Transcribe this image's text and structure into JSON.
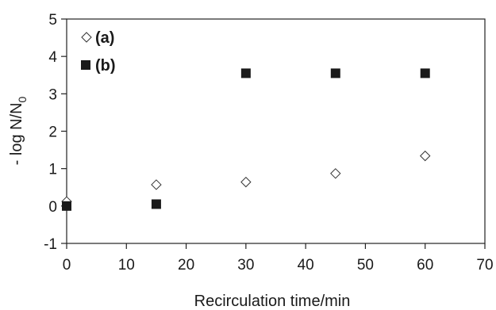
{
  "chart_data": {
    "type": "scatter",
    "xlabel": "Recirculation time/min",
    "ylabel_main": "- log N/N",
    "ylabel_sub": "0",
    "xlim": [
      0,
      70
    ],
    "ylim": [
      -1,
      5
    ],
    "x_ticks": [
      0,
      10,
      20,
      30,
      40,
      50,
      60,
      70
    ],
    "y_ticks": [
      -1,
      0,
      1,
      2,
      3,
      4,
      5
    ],
    "grid": false,
    "legend_position": "top-left",
    "series": [
      {
        "name": "(a)",
        "marker": "open-diamond",
        "x": [
          0,
          15,
          30,
          45,
          60
        ],
        "y": [
          0.12,
          0.57,
          0.64,
          0.87,
          1.34
        ]
      },
      {
        "name": "(b)",
        "marker": "filled-square",
        "x": [
          0,
          15,
          30,
          45,
          60
        ],
        "y": [
          0.0,
          0.05,
          3.55,
          3.55,
          3.55
        ]
      }
    ]
  }
}
